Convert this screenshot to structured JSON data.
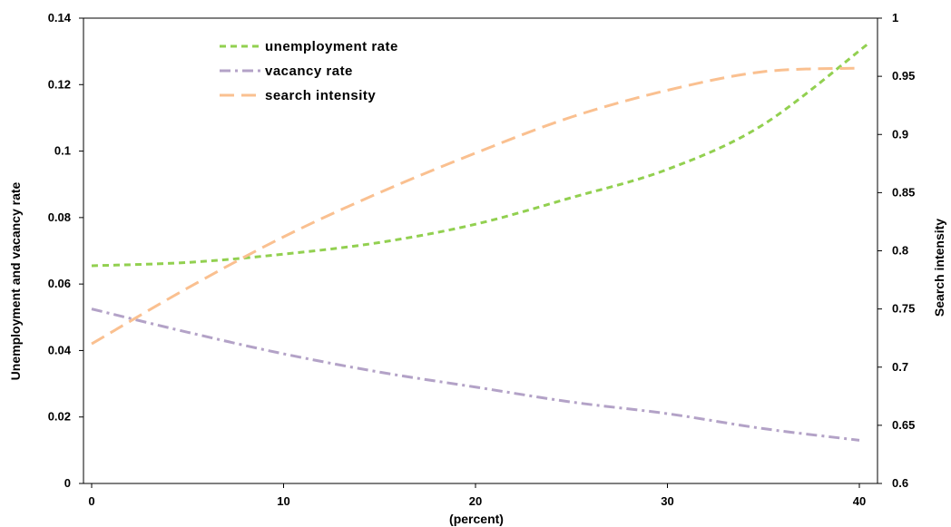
{
  "chart_data": {
    "type": "line",
    "xlabel": "(percent)",
    "ylabel": "Unemployment and vacancy rate",
    "y2label": "Search intensity",
    "xlim": [
      0,
      40.5
    ],
    "ylim": [
      0,
      0.14
    ],
    "y2lim": [
      0.6,
      1.0
    ],
    "x_ticks": [
      "0",
      "10",
      "20",
      "30",
      "40"
    ],
    "y_ticks": [
      "0",
      "0.02",
      "0.04",
      "0.06",
      "0.08",
      "0.1",
      "0.12",
      "0.14"
    ],
    "y2_ticks": [
      "0.6",
      "0.65",
      "0.7",
      "0.75",
      "0.8",
      "0.85",
      "0.9",
      "0.95",
      "1"
    ],
    "grid": false,
    "legend_position": "top-left",
    "series": [
      {
        "name": "unemployment rate",
        "axis": "left",
        "color": "#92D050",
        "dash": "dash",
        "x": [
          0,
          5,
          10,
          15,
          20,
          25,
          30,
          35,
          40.5
        ],
        "values": [
          0.0655,
          0.0665,
          0.069,
          0.0725,
          0.078,
          0.086,
          0.0945,
          0.108,
          0.1325
        ]
      },
      {
        "name": "vacancy rate",
        "axis": "left",
        "color": "#B3A2C7",
        "dash": "dashdot",
        "x": [
          0,
          5,
          10,
          15,
          20,
          25,
          30,
          35,
          40
        ],
        "values": [
          0.0525,
          0.0455,
          0.039,
          0.0335,
          0.029,
          0.0245,
          0.021,
          0.0165,
          0.013
        ]
      },
      {
        "name": "search intensity",
        "axis": "right",
        "color": "#FAC090",
        "dash": "longdash",
        "x": [
          0,
          5,
          10,
          15,
          20,
          25,
          30,
          35,
          40
        ],
        "values": [
          0.72,
          0.768,
          0.812,
          0.85,
          0.884,
          0.915,
          0.938,
          0.954,
          0.957
        ]
      }
    ]
  }
}
